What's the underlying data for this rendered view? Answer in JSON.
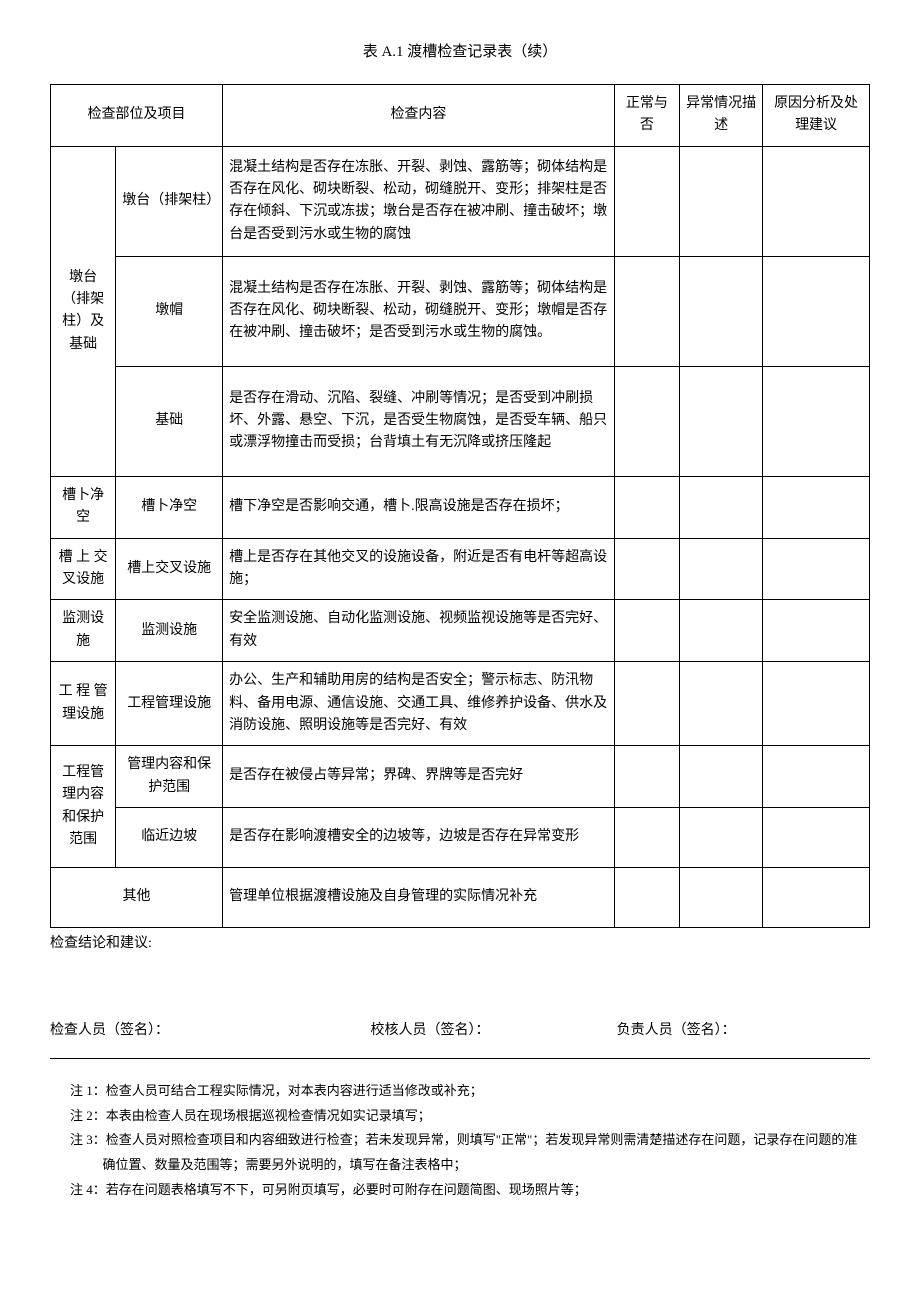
{
  "title": "表 A.1 渡槽检查记录表（续）",
  "headers": {
    "category": "检查部位及项目",
    "content": "检查内容",
    "normal": "正常与否",
    "abnormal": "异常情况描述",
    "suggest": "原因分析及处理建议"
  },
  "rows": [
    {
      "cat": "墩台（排架柱）及基础",
      "cat_rowspan": 3,
      "item": "墩台（排架柱）",
      "content": "混凝土结构是否存在冻胀、开裂、剥蚀、露筋等；砌体结构是否存在风化、砌块断裂、松动，砌缝脱开、变形；排架柱是否存在倾斜、下沉或冻拔；墩台是否存在被冲刷、撞击破坏；墩台是否受到污水或生物的腐蚀"
    },
    {
      "item": "墩帽",
      "content": "混凝土结构是否存在冻胀、开裂、剥蚀、露筋等；砌体结构是否存在风化、砌块断裂、松动，砌缝脱开、变形；墩帽是否存在被冲刷、撞击破坏；是否受到污水或生物的腐蚀。"
    },
    {
      "item": "基础",
      "content": "是否存在滑动、沉陷、裂缝、冲刷等情况；是否受到冲刷损坏、外露、悬空、下沉，是否受生物腐蚀，是否受车辆、船只或漂浮物撞击而受损；台背填土有无沉降或挤压隆起"
    },
    {
      "cat": "槽卜净空",
      "cat_rowspan": 1,
      "item": "槽卜净空",
      "content": "槽下净空是否影响交通，槽卜.限高设施是否存在损坏；"
    },
    {
      "cat": "槽 上 交叉设施",
      "cat_rowspan": 1,
      "item": "槽上交叉设施",
      "content": "槽上是否存在其他交叉的设施设备，附近是否有电杆等超高设施；"
    },
    {
      "cat": "监测设施",
      "cat_rowspan": 1,
      "item": "监测设施",
      "content": "安全监测设施、自动化监测设施、视频监视设施等是否完好、有效"
    },
    {
      "cat": "工 程 管理设施",
      "cat_rowspan": 1,
      "item": "工程管理设施",
      "content": "办公、生产和辅助用房的结构是否安全；警示标志、防汛物料、备用电源、通信设施、交通工具、维修养护设备、供水及消防设施、照明设施等是否完好、有效"
    },
    {
      "cat": "工程管理内容和保护范围",
      "cat_rowspan": 2,
      "item": "管理内容和保护范围",
      "content": "是否存在被侵占等异常；界碑、界牌等是否完好"
    },
    {
      "item": "临近边坡",
      "content": "是否存在影响渡槽安全的边坡等，边坡是否存在异常变形"
    },
    {
      "cat": "其他",
      "cat_colspan": 2,
      "content": "管理单位根据渡槽设施及自身管理的实际情况补充"
    }
  ],
  "conclusion_label": "检查结论和建议:",
  "signatures": {
    "inspector": "检查人员（签名）：",
    "checker": "校核人员（签名）：",
    "responsible": "负责人员（签名）："
  },
  "notes": [
    "注 1：检查人员可结合工程实际情况，对本表内容进行适当修改或补充；",
    "注 2：本表由检查人员在现场根据巡视检查情况如实记录填写；",
    "注 3：检查人员对照检查项目和内容细致进行检查；若未发现异常，则填写\"正常\"；若发现异常则需清楚描述存在问题，记录存在问题的准确位置、数量及范围等；需要另外说明的，填写在备注表格中；",
    "注 4：若存在问题表格填写不下，可另附页填写，必要时可附存在问题简图、现场照片等；"
  ]
}
